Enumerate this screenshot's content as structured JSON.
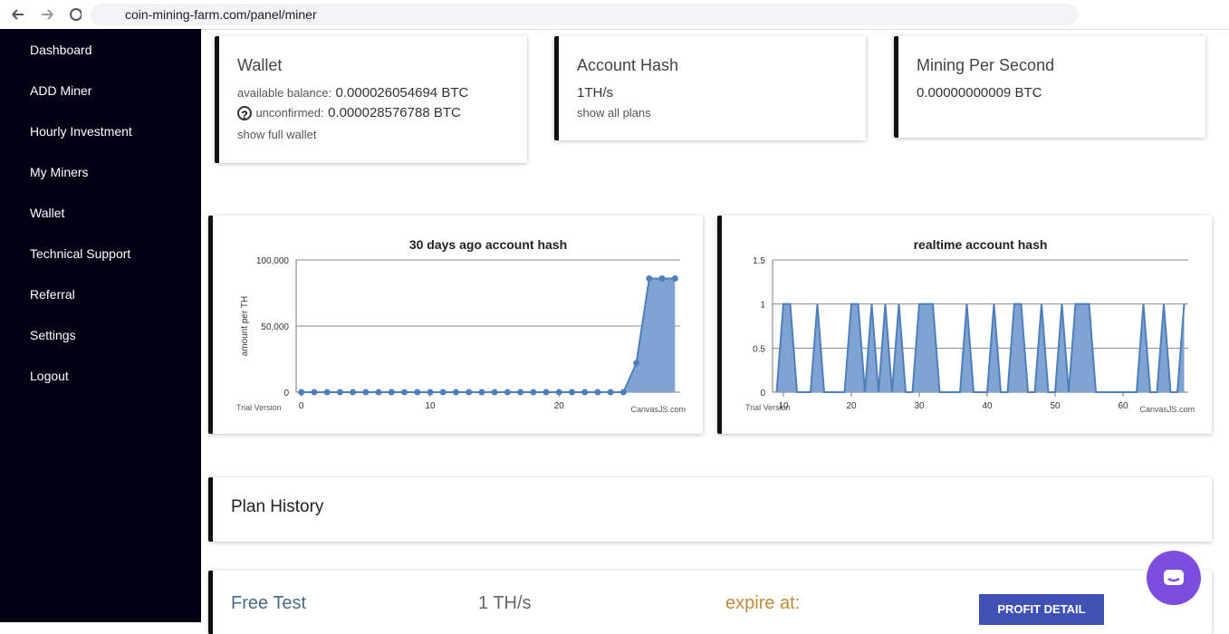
{
  "browser": {
    "url": "coin-mining-farm.com/panel/miner"
  },
  "sidebar": {
    "items": [
      "Dashboard",
      "ADD Miner",
      "Hourly Investment",
      "My Miners",
      "Wallet",
      "Technical Support",
      "Referral",
      "Settings",
      "Logout"
    ]
  },
  "cards": [
    {
      "title": "Wallet",
      "lines": [
        {
          "label": "available balance:",
          "value": "0.000026054694 BTC"
        },
        {
          "label": "unconfirmed:",
          "value": "0.000028576788 BTC"
        }
      ],
      "link": "show full wallet"
    },
    {
      "title": "Account Hash",
      "value": "1TH/s",
      "link": "show all plans"
    },
    {
      "title": "Mining Per Second",
      "value": "0.00000000009 BTC"
    }
  ],
  "chart_data": [
    {
      "type": "area",
      "title": "30 days ago account hash",
      "y_label": "amount per TH",
      "x": [
        0,
        1,
        2,
        3,
        4,
        5,
        6,
        7,
        8,
        9,
        10,
        11,
        12,
        13,
        14,
        15,
        16,
        17,
        18,
        19,
        20,
        21,
        22,
        23,
        24,
        25,
        26,
        27,
        28,
        29
      ],
      "values": [
        0,
        0,
        0,
        0,
        0,
        0,
        0,
        0,
        0,
        0,
        0,
        0,
        0,
        0,
        0,
        0,
        0,
        0,
        0,
        0,
        0,
        0,
        0,
        0,
        0,
        0,
        22000,
        86000,
        86000,
        86000
      ],
      "color": "#7fa3d3",
      "line_color": "#4f7fbb",
      "markers": true,
      "xlim": [
        -0.4,
        29.4
      ],
      "xticks": [
        0,
        10,
        20
      ],
      "ylim": [
        0,
        100000
      ],
      "yticks": [
        0,
        {
          "value": 50000,
          "label": "50,000"
        },
        {
          "value": 100000,
          "label": "100,000"
        }
      ],
      "grid": true,
      "annotations": [
        "Trial Version",
        "CanvasJS.com"
      ]
    },
    {
      "type": "area",
      "title": "realtime account hash",
      "x": [
        9,
        10,
        11,
        12,
        13,
        14,
        15,
        16,
        17,
        18,
        19,
        20,
        21,
        22,
        23,
        24,
        25,
        26,
        27,
        28,
        29,
        30,
        31,
        32,
        33,
        34,
        35,
        36,
        37,
        38,
        39,
        40,
        41,
        42,
        43,
        44,
        45,
        46,
        47,
        48,
        49,
        50,
        51,
        52,
        53,
        54,
        55,
        56,
        57,
        58,
        59,
        60,
        61,
        62,
        63,
        64,
        65,
        66,
        67,
        68,
        69
      ],
      "values": [
        0,
        1,
        1,
        0,
        0,
        0,
        1,
        0,
        0,
        0,
        0,
        1,
        1,
        0,
        1,
        0,
        1,
        0,
        1,
        0,
        0,
        1,
        1,
        1,
        0,
        0,
        0,
        0,
        1,
        0,
        0,
        0,
        1,
        0,
        0,
        1,
        1,
        0,
        0,
        1,
        0,
        0,
        1,
        0,
        1,
        1,
        1,
        0,
        0,
        0,
        0,
        0,
        0,
        0,
        1,
        0,
        0,
        1,
        0,
        0,
        1
      ],
      "color": "#7fa3d3",
      "line_color": "#4f7fbb",
      "markers": false,
      "xlim": [
        8.4,
        69.6
      ],
      "xticks": [
        10,
        20,
        30,
        40,
        50,
        60
      ],
      "ylim": [
        0,
        1.5
      ],
      "yticks": [
        0,
        0.5,
        1,
        1.5
      ],
      "grid": true,
      "annotations": [
        "Trial Version",
        "CanvasJS.com"
      ]
    }
  ],
  "plan_history": {
    "title": "Plan History"
  },
  "plan": {
    "name": "Free Test",
    "hash": "1 TH/s",
    "expire": "expire at:",
    "button": "PROFIT DETAIL"
  }
}
